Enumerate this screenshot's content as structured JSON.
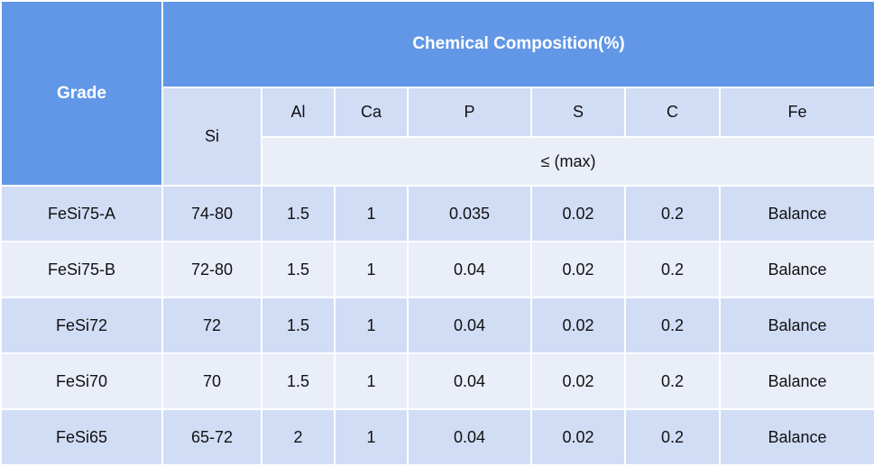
{
  "table": {
    "grade_header": "Grade",
    "composition_header": "Chemical Composition(%)",
    "columns": [
      "Si",
      "Al",
      "Ca",
      "P",
      "S",
      "C",
      "Fe"
    ],
    "max_label": "≤  (max)",
    "rows": [
      {
        "grade": "FeSi75-A",
        "si": "74-80",
        "al": "1.5",
        "ca": "1",
        "p": "0.035",
        "s": "0.02",
        "c": "0.2",
        "fe": "Balance"
      },
      {
        "grade": "FeSi75-B",
        "si": "72-80",
        "al": "1.5",
        "ca": "1",
        "p": "0.04",
        "s": "0.02",
        "c": "0.2",
        "fe": "Balance"
      },
      {
        "grade": "FeSi72",
        "si": "72",
        "al": "1.5",
        "ca": "1",
        "p": "0.04",
        "s": "0.02",
        "c": "0.2",
        "fe": "Balance"
      },
      {
        "grade": "FeSi70",
        "si": "70",
        "al": "1.5",
        "ca": "1",
        "p": "0.04",
        "s": "0.02",
        "c": "0.2",
        "fe": "Balance"
      },
      {
        "grade": "FeSi65",
        "si": "65-72",
        "al": "2",
        "ca": "1",
        "p": "0.04",
        "s": "0.02",
        "c": "0.2",
        "fe": "Balance"
      }
    ]
  },
  "colors": {
    "header_blue": "#6197e6",
    "row_dark": "#d1dcf5",
    "row_light": "#e9eef9"
  }
}
